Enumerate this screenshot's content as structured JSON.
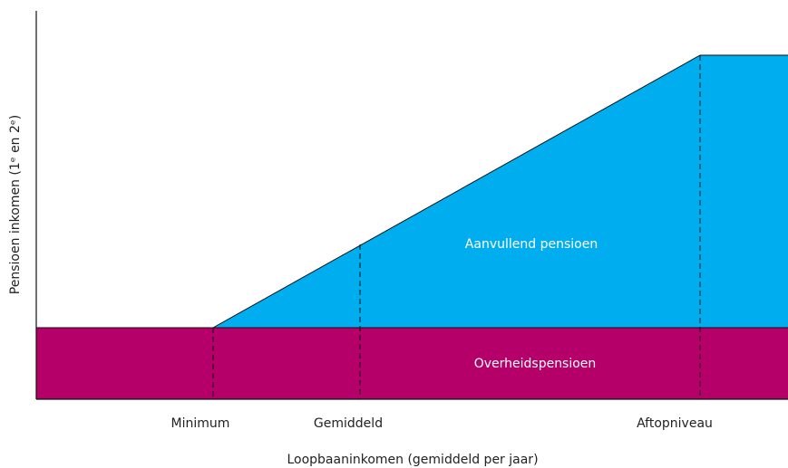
{
  "title": null,
  "y_axis_label": "Pensioen inkomen  (1ᵉ en 2ᵉ)",
  "x_axis_label": "Loopbaaninkomen (gemiddeld per jaar)",
  "regions": [
    "Aanvullend pensioen",
    "Overheidspensioen"
  ],
  "markers": [
    "Minimum",
    "Gemiddeld",
    "Aftopniveau"
  ]
}
